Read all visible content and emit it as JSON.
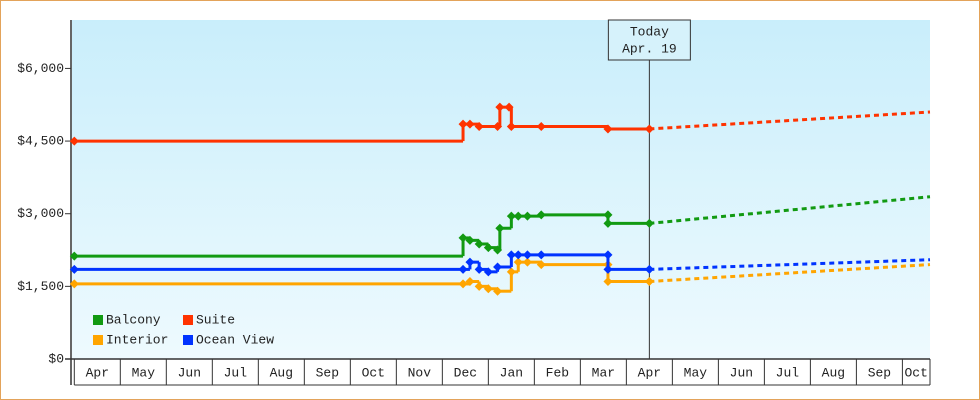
{
  "chart_data": {
    "type": "step-line",
    "xlim": [
      -0.05,
      18.6
    ],
    "ylim": [
      0,
      7000
    ],
    "yticks": [
      {
        "value": 0,
        "label": "$0"
      },
      {
        "value": 1500,
        "label": "$1,500"
      },
      {
        "value": 3000,
        "label": "$3,000"
      },
      {
        "value": 4500,
        "label": "$4,500"
      },
      {
        "value": 6000,
        "label": "$6,000"
      }
    ],
    "categories": [
      "Apr",
      "May",
      "Jun",
      "Jul",
      "Aug",
      "Sep",
      "Oct",
      "Nov",
      "Dec",
      "Jan",
      "Feb",
      "Mar",
      "Apr",
      "May",
      "Jun",
      "Jul",
      "Aug",
      "Sep",
      "Oct"
    ],
    "annotation": {
      "x": 12.5,
      "lines": [
        "Today",
        "Apr. 19"
      ]
    },
    "series": [
      {
        "name": "Balcony",
        "color": "#129a12",
        "x": [
          0,
          8.45,
          8.6,
          8.8,
          9.0,
          9.2,
          9.25,
          9.5,
          9.65,
          9.85,
          10.15,
          11.6,
          11.6,
          12.5
        ],
        "values": [
          2125,
          2500,
          2450,
          2375,
          2300,
          2250,
          2700,
          2950,
          2950,
          2950,
          2975,
          2975,
          2800,
          2800
        ],
        "forecast": {
          "x": [
            12.5,
            18.6
          ],
          "values": [
            2800,
            3350
          ]
        }
      },
      {
        "name": "Suite",
        "color": "#ff3300",
        "x": [
          0,
          8.45,
          8.6,
          8.8,
          9.2,
          9.25,
          9.45,
          9.5,
          10.15,
          11.6,
          12.5
        ],
        "values": [
          4500,
          4850,
          4850,
          4800,
          4800,
          5200,
          5200,
          4800,
          4800,
          4750,
          4750
        ],
        "forecast": {
          "x": [
            12.5,
            18.6
          ],
          "values": [
            4750,
            5100
          ]
        }
      },
      {
        "name": "Interior",
        "color": "#ffa500",
        "x": [
          0,
          8.45,
          8.6,
          8.8,
          9.0,
          9.2,
          9.5,
          9.65,
          9.85,
          10.15,
          11.6,
          11.6,
          12.5
        ],
        "values": [
          1550,
          1550,
          1600,
          1500,
          1450,
          1400,
          1800,
          2000,
          2000,
          1950,
          1950,
          1600,
          1600
        ],
        "forecast": {
          "x": [
            12.5,
            18.6
          ],
          "values": [
            1600,
            1950
          ]
        }
      },
      {
        "name": "Ocean View",
        "color": "#0033ff",
        "x": [
          0,
          8.45,
          8.6,
          8.8,
          9.0,
          9.2,
          9.5,
          9.65,
          9.85,
          10.15,
          11.6,
          11.6,
          12.5
        ],
        "values": [
          1850,
          1850,
          2000,
          1850,
          1800,
          1900,
          2150,
          2150,
          2150,
          2150,
          2150,
          1850,
          1850
        ],
        "forecast": {
          "x": [
            12.5,
            18.6
          ],
          "values": [
            1850,
            2050
          ]
        }
      }
    ]
  }
}
